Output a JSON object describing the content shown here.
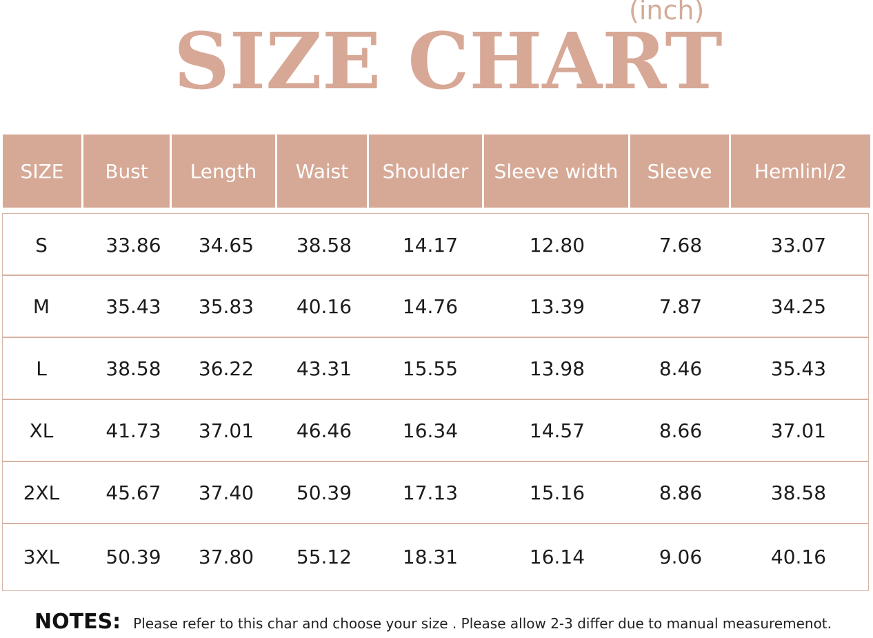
{
  "title": "SIZE CHART",
  "unit": "(inch)",
  "table": {
    "headers": [
      "SIZE",
      "Bust",
      "Length",
      "Waist",
      "Shoulder",
      "Sleeve width",
      "Sleeve",
      "Hemlinl/2"
    ],
    "rows": [
      [
        "S",
        "33.86",
        "34.65",
        "38.58",
        "14.17",
        "12.80",
        "7.68",
        "33.07"
      ],
      [
        "M",
        "35.43",
        "35.83",
        "40.16",
        "14.76",
        "13.39",
        "7.87",
        "34.25"
      ],
      [
        "L",
        "38.58",
        "36.22",
        "43.31",
        "15.55",
        "13.98",
        "8.46",
        "35.43"
      ],
      [
        "XL",
        "41.73",
        "37.01",
        "46.46",
        "16.34",
        "14.57",
        "8.66",
        "37.01"
      ],
      [
        "2XL",
        "45.67",
        "37.40",
        "50.39",
        "17.13",
        "15.16",
        "8.86",
        "38.58"
      ],
      [
        "3XL",
        "50.39",
        "37.80",
        "55.12",
        "18.31",
        "16.14",
        "9.06",
        "40.16"
      ]
    ]
  },
  "notes": {
    "label": "NOTES:",
    "text": "Please refer to this char and choose your size . Please allow 2-3 differ due to manual measuremenot."
  },
  "colors": {
    "accent": "#d6a996",
    "title": "#d8a897",
    "row_divider": "#d6b2a3"
  }
}
